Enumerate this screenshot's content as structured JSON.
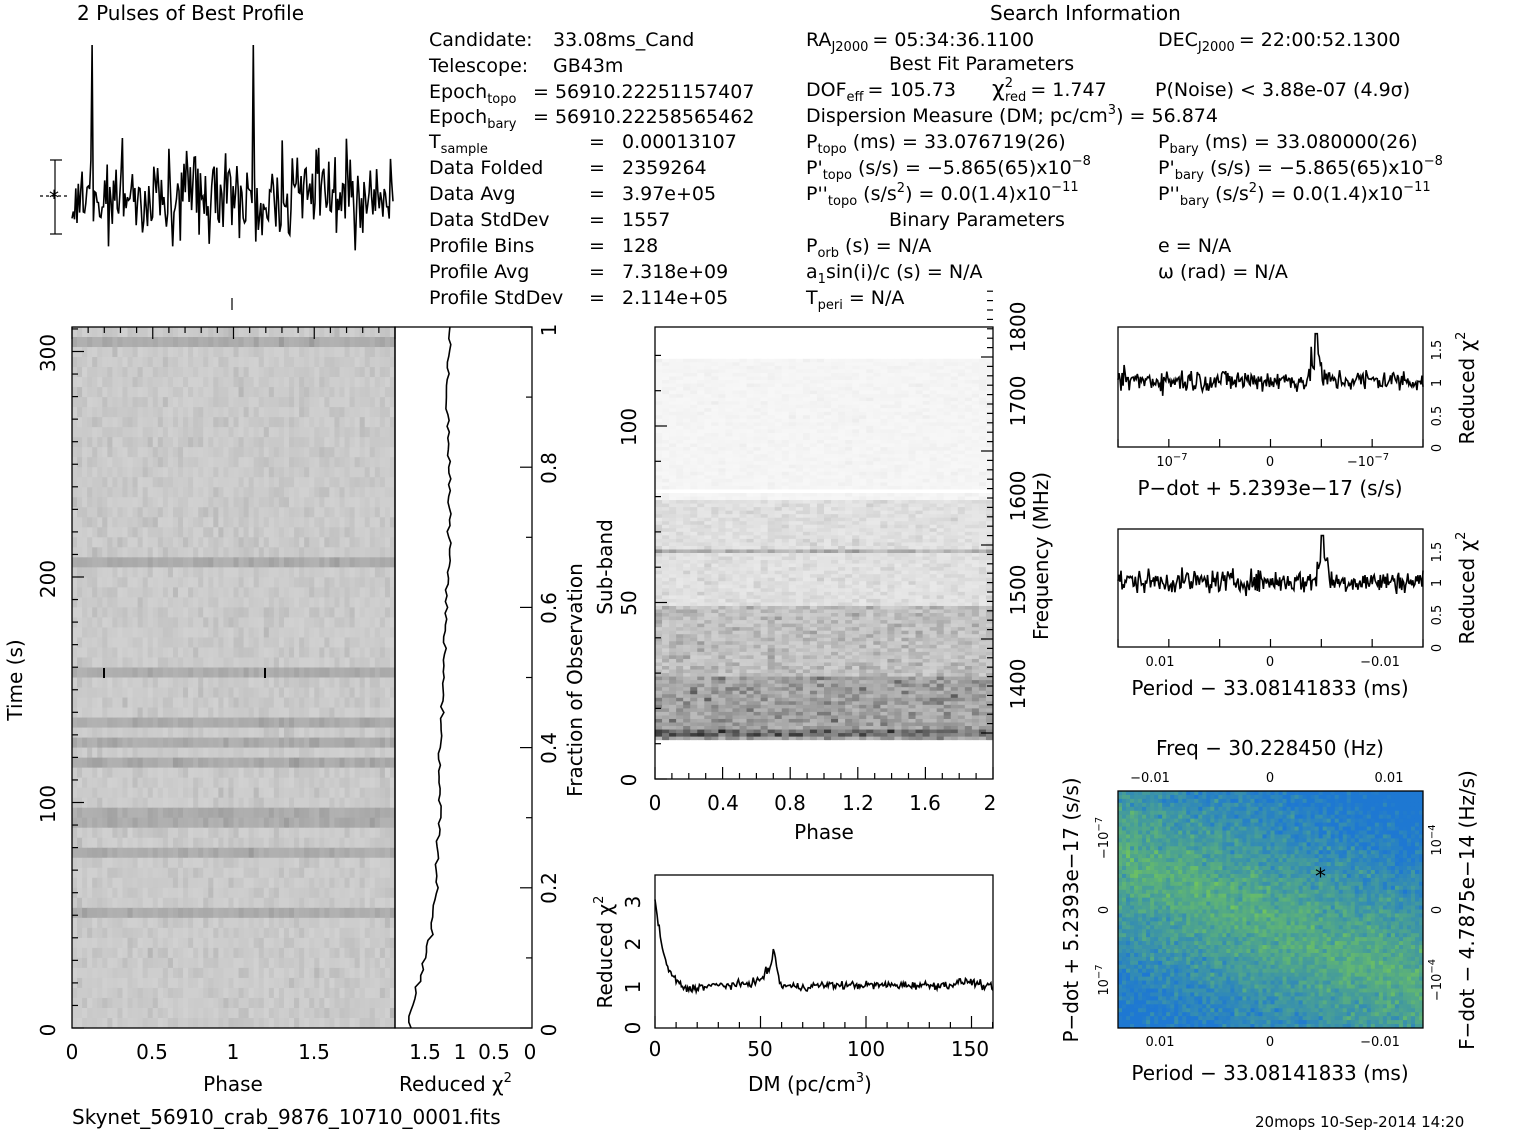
{
  "filename": "Skynet_56910_crab_9876_10710_0001.fits",
  "footer_stamp": "20mops 10-Sep-2014 14:20",
  "headers": {
    "profile_title": "2 Pulses of Best Profile",
    "search_title": "Search Information",
    "best_fit": "Best Fit Parameters",
    "binary": "Binary Parameters"
  },
  "info": {
    "candidate_label": "Candidate:",
    "candidate": "33.08ms_Cand",
    "telescope_label": "Telescope:",
    "telescope": "GB43m",
    "epoch_topo_label": "Epoch",
    "epoch_topo_sub": "topo",
    "epoch_topo": "= 56910.22251157407",
    "epoch_bary_label": "Epoch",
    "epoch_bary_sub": "bary",
    "epoch_bary": "= 56910.22258565462",
    "t_sample_label": "T",
    "t_sample_sub": "sample",
    "t_sample_eq": "=",
    "t_sample": "0.00013107",
    "data_folded_label": "Data Folded",
    "data_folded": "2359264",
    "data_avg_label": "Data Avg",
    "data_avg": "3.97e+05",
    "data_std_label": "Data StdDev",
    "data_std": "1557",
    "profile_bins_label": "Profile Bins",
    "profile_bins": "128",
    "profile_avg_label": "Profile Avg",
    "profile_avg": "7.318e+09",
    "profile_std_label": "Profile StdDev",
    "profile_std": "2.114e+05",
    "eq": "="
  },
  "search": {
    "ra_label": "RA",
    "ra_sub": "J2000",
    "ra": "= 05:34:36.1100",
    "dec_label": "DEC",
    "dec_sub": "J2000",
    "dec": "= 22:00:52.1300",
    "dof_label": "DOF",
    "dof_sub": "eff",
    "dof": "= 105.73",
    "chi_label": "χ",
    "chi_sup": "2",
    "chi_sub": "red",
    "chi": "= 1.747",
    "noise": "P(Noise) < 3.88e-07  (4.9σ)",
    "dm_label": "Dispersion Measure (DM; pc/cm",
    "dm_sup": "3",
    "dm": ") = 56.874",
    "ptopo_label": "P",
    "ptopo_sub": "topo",
    "ptopo": "(ms) =  33.076719(26)",
    "pbary_label": "P",
    "pbary_sub": "bary",
    "pbary": "(ms) =  33.080000(26)",
    "pdtopo_label": "P'",
    "pdtopo_sub": "topo",
    "pdtopo": "(s/s) = −5.865(65)x10",
    "pdtopo_exp": "−8",
    "pdbary_label": "P'",
    "pdbary_sub": "bary",
    "pdbary": "(s/s) = −5.865(65)x10",
    "pdbary_exp": "−8",
    "pddtopo_label": "P''",
    "pddtopo_sub": "topo",
    "pddtopo": "(s/s",
    "pddtopo_sup": "2",
    "pddtopo_rest": ") = 0.0(1.4)x10",
    "pddtopo_exp": "−11",
    "pddbary_label": "P''",
    "pddbary_sub": "bary",
    "pddbary": "(s/s",
    "pddbary_sup": "2",
    "pddbary_rest": ") = 0.0(1.4)x10",
    "pddbary_exp": "−11",
    "porb_label": "P",
    "porb_sub": "orb",
    "porb": "(s) = N/A",
    "e": "e = N/A",
    "a1_label": "a",
    "a1_sub": "1",
    "a1": "sin(i)/c (s) = N/A",
    "omega": "ω (rad) = N/A",
    "tperi_label": "T",
    "tperi_sub": "peri",
    "tperi": "= N/A"
  },
  "axes": {
    "time_label": "Time (s)",
    "phase_label": "Phase",
    "redchi_label": "Reduced χ",
    "redchi_sup": "2",
    "fraction_label": "Fraction of Observation",
    "subband_label": "Sub-band",
    "freq_label": "Frequency (MHz)",
    "dm_axis_label": "DM (pc/cm",
    "dm_axis_sup": "3",
    "dm_axis_close": ")",
    "pdot_axis": "P−dot + 5.2393e−17 (s/s)",
    "period_axis": "Period − 33.08141833 (ms)",
    "freq_axis": "Freq − 30.228450 (Hz)",
    "fdot_axis": "F−dot − 4.7875e−14 (Hz/s)",
    "time_ticks": [
      "0",
      "100",
      "200",
      "300"
    ],
    "phase_ticks": [
      "0",
      "0.5",
      "1",
      "1.5"
    ],
    "redchi_ticks": [
      "1.5",
      "1",
      "0.5",
      "0"
    ],
    "fraction_ticks": [
      "0",
      "0.2",
      "0.4",
      "0.6",
      "0.8",
      "1"
    ],
    "subband_ticks": [
      "0",
      "50",
      "100"
    ],
    "freq_ticks": [
      "1400",
      "1500",
      "1600",
      "1700",
      "1800"
    ],
    "phase2_ticks": [
      "0",
      "0.4",
      "0.8",
      "1.2",
      "1.6",
      "2"
    ],
    "dm_ticks": [
      "0",
      "50",
      "100",
      "150"
    ],
    "dm_y_ticks": [
      "0",
      "1",
      "2",
      "3"
    ],
    "small_chi_ticks": [
      "0",
      "0.5",
      "1",
      "1.5"
    ],
    "pdot_ticks": [
      "10",
      "0",
      "−10"
    ],
    "pdot_exp": "−7",
    "period_ticks": [
      "0.01",
      "0",
      "−0.01"
    ],
    "freq_top_ticks": [
      "−0.01",
      "0",
      "0.01"
    ],
    "grid_pdot_ticks": [
      "−10",
      "0",
      "10"
    ],
    "grid_fdot_ticks": [
      "10",
      "0",
      "−10"
    ],
    "grid_fdot_exp": "−4",
    "grid_period_ticks": [
      "0.01",
      "0",
      "−0.01"
    ]
  },
  "chart_data": [
    {
      "type": "line",
      "title": "2 Pulses of Best Profile",
      "x": "phase 0-2",
      "bins": 256,
      "note_values": "folded pulse profile, 2 pulses, noise-like"
    },
    {
      "type": "heatmap",
      "xlabel": "Phase",
      "ylabel": "Time (s)",
      "xlim": [
        0,
        2
      ],
      "ylim": [
        0,
        310
      ]
    },
    {
      "type": "line",
      "xlabel": "Reduced χ2",
      "ylabel": "Fraction of Observation",
      "x": [
        1.8,
        1.7,
        1.5,
        1.4,
        1.35,
        1.35,
        1.3,
        1.3,
        1.25,
        1.2,
        1.2,
        1.25,
        1.2
      ],
      "y": [
        0.0,
        0.05,
        0.12,
        0.2,
        0.3,
        0.4,
        0.45,
        0.5,
        0.6,
        0.7,
        0.8,
        0.9,
        1.0
      ]
    },
    {
      "type": "heatmap",
      "xlabel": "Phase",
      "ylabel": "Sub-band",
      "xlim": [
        0,
        2
      ],
      "ylim": [
        0,
        128
      ],
      "y2label": "Frequency (MHz)",
      "y2lim": [
        1330,
        1800
      ]
    },
    {
      "type": "line",
      "xlabel": "DM (pc/cm3)",
      "ylabel": "Reduced χ2",
      "xlim": [
        0,
        162
      ],
      "ylim": [
        0,
        3.5
      ],
      "x": [
        0,
        2,
        5,
        10,
        15,
        20,
        30,
        40,
        50,
        55,
        57,
        60,
        70,
        80,
        100,
        120,
        140,
        150,
        160
      ],
      "y": [
        3.0,
        2.3,
        1.5,
        1.1,
        0.9,
        0.95,
        1.0,
        1.0,
        1.1,
        1.4,
        1.8,
        1.0,
        0.95,
        1.0,
        1.0,
        1.0,
        1.0,
        1.1,
        0.95
      ]
    },
    {
      "type": "line",
      "xlabel": "P-dot + 5.2393e-17 (s/s)",
      "ylabel": "Reduced χ2",
      "ylim": [
        0,
        1.8
      ],
      "peak_x_frac": 0.65,
      "peak_y": 1.7
    },
    {
      "type": "line",
      "xlabel": "Period − 33.08141833 (ms)",
      "ylabel": "Reduced χ2",
      "ylim": [
        0,
        1.8
      ],
      "peak_x_frac": 0.67,
      "peak_y": 1.7
    },
    {
      "type": "heatmap",
      "xlabel": "Period − 33.08141833 (ms)",
      "ylabel": "P-dot + 5.2393e-17 (s/s)",
      "x2label": "Freq − 30.228450 (Hz)",
      "y2label": "F−dot − 4.7875e−14 (Hz/s)"
    }
  ]
}
